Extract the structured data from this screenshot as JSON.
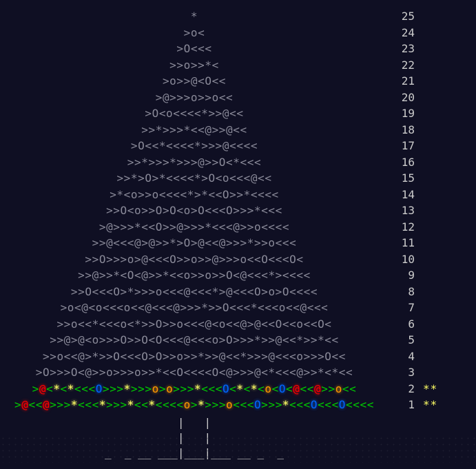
{
  "rows": [
    {
      "day": "25",
      "art": "*"
    },
    {
      "day": "24",
      "art": ">o<"
    },
    {
      "day": "23",
      "art": ">O<<<"
    },
    {
      "day": "22",
      "art": ">>o>>*<"
    },
    {
      "day": "21",
      "art": ">o>>@<O<<"
    },
    {
      "day": "20",
      "art": ">@>>>o>>o<<"
    },
    {
      "day": "19",
      "art": ">O<o<<<<*>>@<<"
    },
    {
      "day": "18",
      "art": ">>*>>>*<<@>>@<<"
    },
    {
      "day": "17",
      "art": ">O<<*<<<<*>>>@<<<<"
    },
    {
      "day": "16",
      "art": ">>*>>>*>>>@>>O<*<<<"
    },
    {
      "day": "15",
      "art": ">>*>O>*<<<<*>O<o<<<@<<"
    },
    {
      "day": "14",
      "art": ">*<o>>o<<<<*>*<<O>>*<<<<"
    },
    {
      "day": "13",
      "art": ">>O<o>>O>O<o>O<<<O>>>*<<<"
    },
    {
      "day": "12",
      "art": ">@>>>*<<O>>@>>>*<<<@>>o<<<<"
    },
    {
      "day": "11",
      "art": ">>@<<<@>@>>*>O>@<<@>>>*>>o<<<"
    },
    {
      "day": "10",
      "art": ">>O>>>o>@<<<O>>o>>@>>>o<<O<<<O<"
    },
    {
      "day": "9",
      "art": ">>@>>*<O<@>>*<<o>>o>>O<@<<<*><<<<"
    },
    {
      "day": "8",
      "art": ">>O<<<O>*>>>o<<<@<<<*>@<<<O>o>O<<<<"
    },
    {
      "day": "7",
      "art": ">o<@<o<<<o<<@<<<@>>>*>>O<<<*<<<o<<@<<<"
    },
    {
      "day": "6",
      "art": ">>o<<*<<<o<*>>O>>o<<<@<o<<@>@<<O<<o<<O<"
    },
    {
      "day": "5",
      "art": ">>@>@<o>>>O>>O<O<<<@<<<o>O>>>*>>@<<*>>*<<"
    },
    {
      "day": "4",
      "art": ">>o<<@>*>>O<<<O>O>>o>>*>>@<<*>>>@<<<o>>>O<<"
    },
    {
      "day": "3",
      "art": ">O>>>O<@>>o>>>o>>*<<O<<<<O<@>>>@<*<<<@>>*<*<<"
    },
    {
      "day": "2",
      "art": ">@<*<*<<<O>>>*>>>o>o>>>*<<<O<*<*<o<O<@<<@>>o<<",
      "stars": "**",
      "lit": true
    },
    {
      "day": "1",
      "art": ">@<<@>>>*<<<*>>>*<<*<<<<o>*>>>o<<<O>>>*<<<O<<<O<<<<",
      "stars": "**",
      "lit": true
    }
  ],
  "trunk": [
    "|   |",
    "|   |",
    "_  _ __ ___|___|___ __ _  _"
  ]
}
